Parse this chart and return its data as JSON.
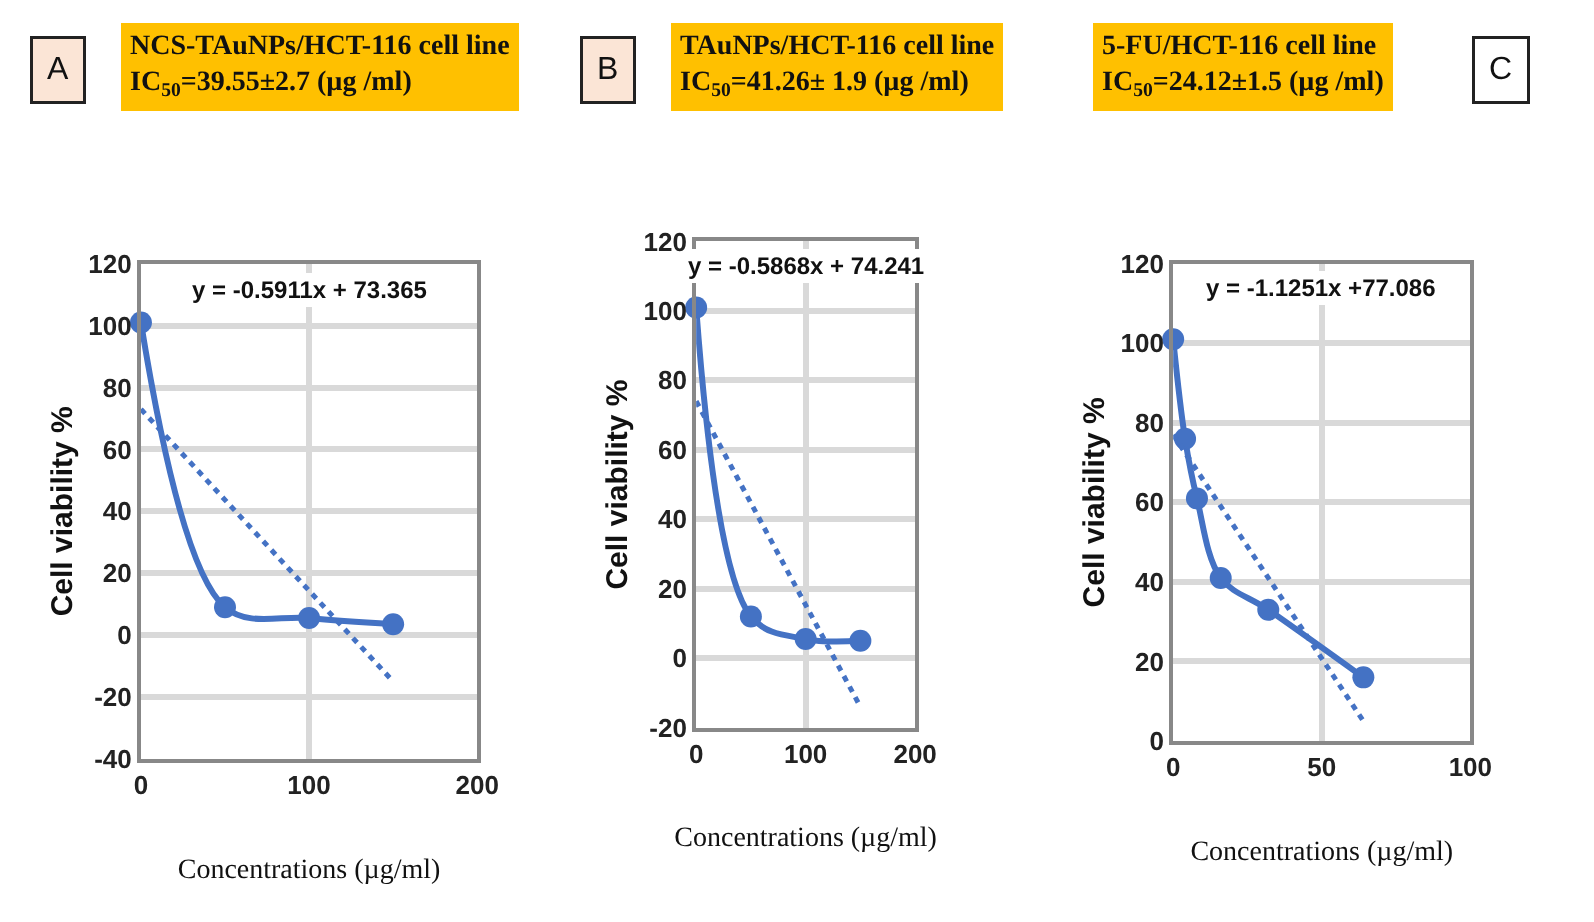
{
  "chart_data": [
    {
      "type": "line",
      "title": "NCS-TAuNPs/HCT-116 cell line IC$_{50}$=39.55±2.7 (µg /ml)",
      "xlabel": "Concentrations (µg/ml)",
      "ylabel": "Cell viability %",
      "annotations": [
        "A",
        "y = -0.5911x + 73.365"
      ],
      "xlim": [
        0,
        200
      ],
      "xticks": [
        0,
        100,
        200
      ],
      "ylim": [
        -40,
        120
      ],
      "yticks": [
        -40,
        -20,
        0,
        20,
        40,
        60,
        80,
        100,
        120
      ],
      "grid": true,
      "series": [
        {
          "color": "#4472c4",
          "x": [
            0,
            50,
            100,
            150
          ],
          "values": [
            101,
            9,
            5.5,
            3.5
          ],
          "marker": "circle",
          "line_style": "solid"
        },
        {
          "color": "#4472c4",
          "x": [
            0,
            150
          ],
          "values": [
            73,
            -15
          ],
          "marker": "none",
          "line_style": "dotted"
        }
      ]
    },
    {
      "type": "line",
      "title": "TAuNPs/HCT-116 cell line IC$_{50}$=41.26± 1.9 (µg /ml)",
      "xlabel": "Concentrations (µg/ml)",
      "ylabel": "Cell viability %",
      "annotations": [
        "B",
        "y = -0.5868x + 74.241"
      ],
      "xlim": [
        0,
        200
      ],
      "xticks": [
        0,
        100,
        200
      ],
      "ylim": [
        -20,
        120
      ],
      "yticks": [
        -20,
        0,
        20,
        40,
        60,
        80,
        100,
        120
      ],
      "grid": true,
      "series": [
        {
          "color": "#4472c4",
          "x": [
            0,
            50,
            100,
            150
          ],
          "values": [
            101,
            12,
            5.5,
            5
          ],
          "marker": "circle",
          "line_style": "solid"
        },
        {
          "color": "#4472c4",
          "x": [
            0,
            150
          ],
          "values": [
            74,
            -14
          ],
          "marker": "none",
          "line_style": "dotted"
        }
      ]
    },
    {
      "type": "line",
      "title": "5-FU/HCT-116 cell line IC$_{50}$=24.12±1.5 (µg /ml)",
      "xlabel": "Concentrations (µg/ml)",
      "ylabel": "Cell viability %",
      "annotations": [
        "C",
        "y = -1.1251x +77.086"
      ],
      "xlim": [
        0,
        100
      ],
      "xticks": [
        0,
        50,
        100
      ],
      "ylim": [
        0,
        120
      ],
      "yticks": [
        0,
        20,
        40,
        60,
        80,
        100,
        120
      ],
      "grid": true,
      "series": [
        {
          "color": "#4472c4",
          "x": [
            0,
            4,
            8,
            16,
            32,
            64
          ],
          "values": [
            101,
            76,
            61,
            41,
            33,
            16
          ],
          "marker": "circle",
          "line_style": "solid"
        },
        {
          "color": "#4472c4",
          "x": [
            0,
            64
          ],
          "values": [
            77,
            5
          ],
          "marker": "none",
          "line_style": "dotted"
        }
      ]
    }
  ]
}
